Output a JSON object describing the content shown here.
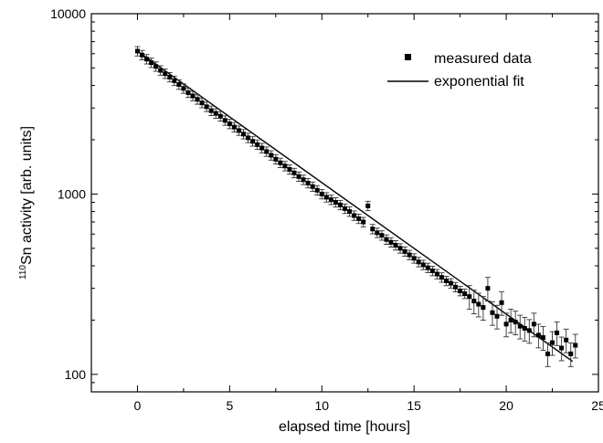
{
  "chart_data": {
    "type": "scatter",
    "title": "",
    "xlabel": "elapsed time [hours]",
    "ylabel_sup": "110",
    "ylabel_main": "Sn activity [arb. units]",
    "xlim": [
      -2.5,
      25
    ],
    "ylim": [
      80,
      10000
    ],
    "yscale": "log",
    "grid": false,
    "legend_position": "top-right",
    "x_ticks": [
      0,
      5,
      10,
      15,
      20,
      25
    ],
    "y_ticks": [
      100,
      1000,
      10000
    ],
    "series": [
      {
        "name": "measured data",
        "kind": "points-with-error-bars",
        "x": [
          0.0,
          0.25,
          0.5,
          0.75,
          1.0,
          1.25,
          1.5,
          1.75,
          2.0,
          2.25,
          2.5,
          2.75,
          3.0,
          3.25,
          3.5,
          3.75,
          4.0,
          4.25,
          4.5,
          4.75,
          5.0,
          5.25,
          5.5,
          5.75,
          6.0,
          6.25,
          6.5,
          6.75,
          7.0,
          7.25,
          7.5,
          7.75,
          8.0,
          8.25,
          8.5,
          8.75,
          9.0,
          9.25,
          9.5,
          9.75,
          10.0,
          10.25,
          10.5,
          10.75,
          11.0,
          11.25,
          11.5,
          11.75,
          12.0,
          12.25,
          12.5,
          12.75,
          13.0,
          13.25,
          13.5,
          13.75,
          14.0,
          14.25,
          14.5,
          14.75,
          15.0,
          15.25,
          15.5,
          15.75,
          16.0,
          16.25,
          16.5,
          16.75,
          17.0,
          17.25,
          17.5,
          17.75,
          18.0,
          18.25,
          18.5,
          18.75,
          19.0,
          19.25,
          19.5,
          19.75,
          20.0,
          20.25,
          20.5,
          20.75,
          21.0,
          21.25,
          21.5,
          21.75,
          22.0,
          22.25,
          22.5,
          22.75,
          23.0,
          23.25,
          23.5,
          23.75
        ],
        "y": [
          6200,
          5900,
          5600,
          5350,
          5100,
          4850,
          4650,
          4450,
          4250,
          4050,
          3850,
          3650,
          3500,
          3350,
          3200,
          3050,
          2900,
          2800,
          2700,
          2560,
          2450,
          2350,
          2250,
          2150,
          2050,
          1960,
          1880,
          1800,
          1720,
          1640,
          1560,
          1490,
          1430,
          1370,
          1310,
          1250,
          1200,
          1150,
          1100,
          1050,
          1000,
          960,
          930,
          900,
          870,
          830,
          800,
          760,
          730,
          700,
          860,
          640,
          610,
          590,
          560,
          540,
          520,
          500,
          480,
          460,
          440,
          420,
          405,
          390,
          375,
          360,
          345,
          330,
          320,
          305,
          290,
          280,
          270,
          255,
          245,
          235,
          300,
          220,
          210,
          250,
          190,
          200,
          195,
          185,
          180,
          175,
          190,
          165,
          160,
          130,
          150,
          170,
          140,
          155,
          130,
          145
        ],
        "err_rel": 0.06,
        "err_rel_late": 0.15,
        "err_late_from_x": 18
      },
      {
        "name": "exponential fit",
        "kind": "line",
        "x": [
          0,
          23.6
        ],
        "y": [
          6200,
          118
        ]
      }
    ]
  }
}
